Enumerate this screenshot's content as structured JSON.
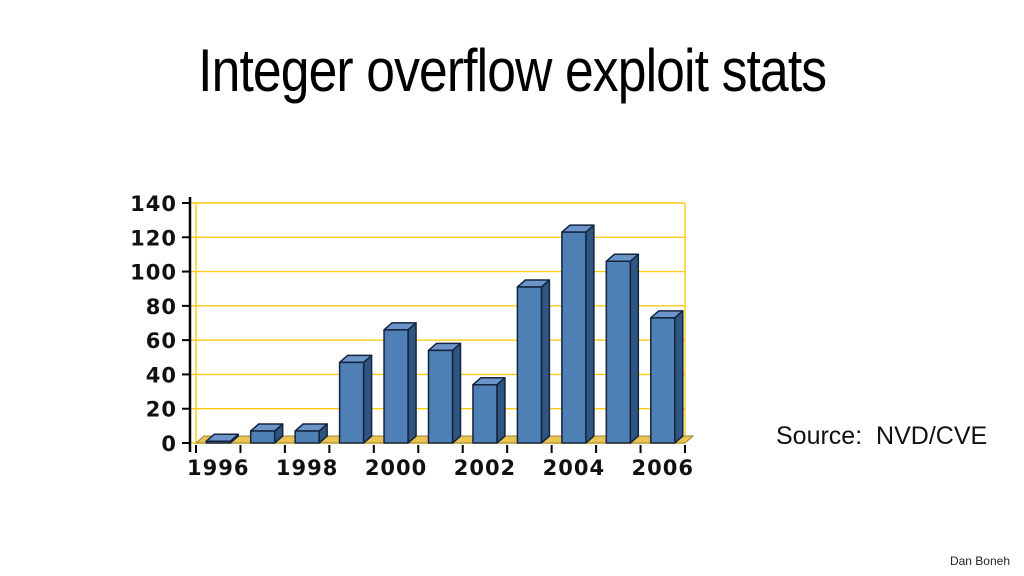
{
  "slide": {
    "title": "Integer overflow exploit stats",
    "source_note": "Source:  NVD/CVE",
    "credit": "Dan Boneh"
  },
  "chart_data": {
    "type": "bar",
    "style": "3d",
    "title": "Integer overflow exploit stats",
    "xlabel": "",
    "ylabel": "",
    "categories": [
      "1996",
      "1997",
      "1998",
      "1999",
      "2000",
      "2001",
      "2002",
      "2003",
      "2004",
      "2005",
      "2006"
    ],
    "values": [
      1,
      7,
      7,
      47,
      66,
      54,
      34,
      91,
      123,
      106,
      73
    ],
    "ylim": [
      0,
      140
    ],
    "yticks": [
      0,
      20,
      40,
      60,
      80,
      100,
      120,
      140
    ],
    "x_tick_labels": [
      "1996",
      "1998",
      "2000",
      "2002",
      "2004",
      "2006"
    ],
    "grid": true,
    "legend": false,
    "colors": {
      "bar_front": "#4E7FB5",
      "bar_top": "#6C96C9",
      "bar_side": "#2E5680",
      "bar_outline": "#14233F",
      "gridline": "#FFC914",
      "floor_fill": "#E9C353",
      "floor_edge": "#A08430",
      "axis": "#000000",
      "label": "#111111"
    }
  }
}
